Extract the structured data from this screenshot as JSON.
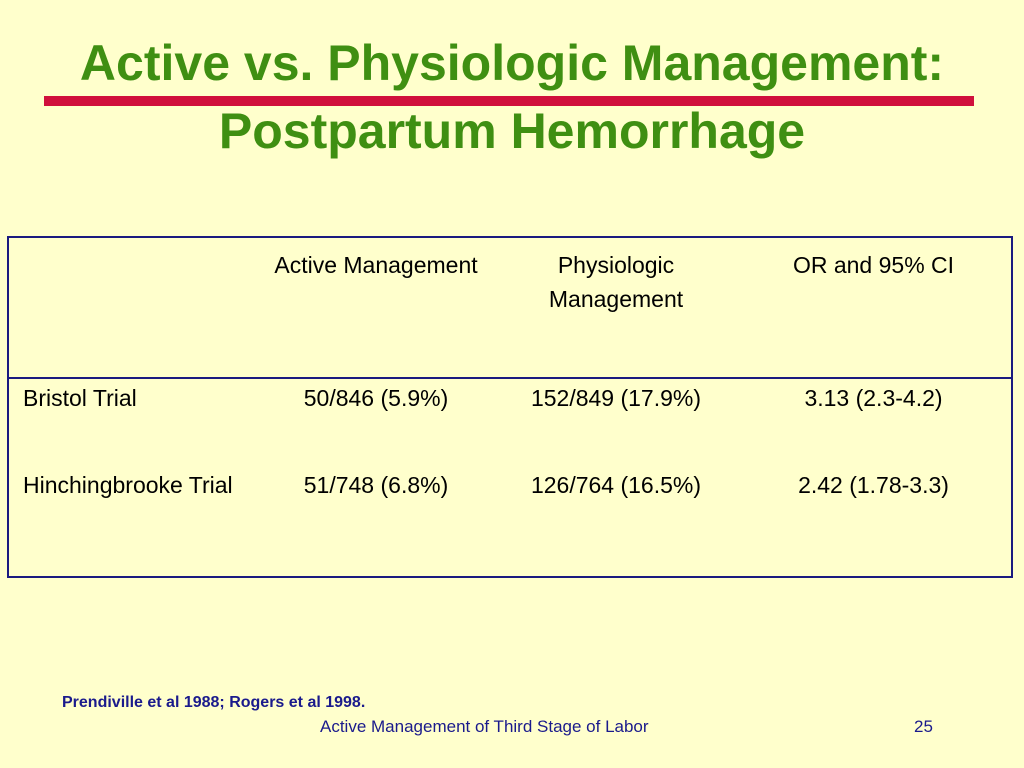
{
  "slide": {
    "title_line1": "Active vs. Physiologic Management:",
    "title_line2": "Postpartum Hemorrhage",
    "colors": {
      "background": "#FFFFCC",
      "title": "#3F8F12",
      "rule": "#D0103C",
      "table_border": "#1A1A80",
      "footer_text": "#1A1A8C"
    }
  },
  "table": {
    "headers": [
      "",
      "Active Management",
      "Physiologic Management",
      "OR and 95% CI"
    ],
    "rows": [
      {
        "trial": "Bristol Trial",
        "active": "50/846 (5.9%)",
        "physiologic": "152/849 (17.9%)",
        "or_ci": "3.13 (2.3-4.2)"
      },
      {
        "trial": "Hinchingbrooke Trial",
        "active": "51/748 (6.8%)",
        "physiologic": "126/764 (16.5%)",
        "or_ci": "2.42 (1.78-3.3)"
      }
    ]
  },
  "citation": "Prendiville et al 1988; Rogers et al 1998.",
  "footer": {
    "text": "Active Management of Third Stage of Labor",
    "page_number": "25"
  }
}
